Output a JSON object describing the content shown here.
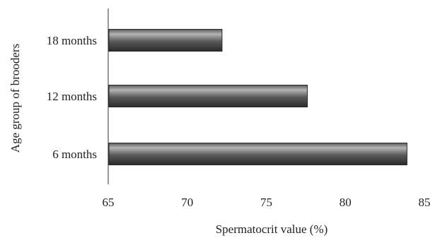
{
  "chart_data": {
    "type": "bar",
    "orientation": "horizontal",
    "categories": [
      "18 months",
      "12 months",
      "6 months"
    ],
    "values": [
      72.2,
      77.6,
      83.9
    ],
    "xlabel": "Spermatocrit value (%)",
    "ylabel": "Age group of brooders",
    "xlim": [
      65,
      85
    ],
    "xticks": [
      "65",
      "70",
      "75",
      "80",
      "85"
    ],
    "grid": false,
    "legend": "none",
    "bar_color": "#5a5a5a",
    "bar_highlight_color": "#b4b4b4",
    "bar_edge_color": "#2a2a2a"
  }
}
